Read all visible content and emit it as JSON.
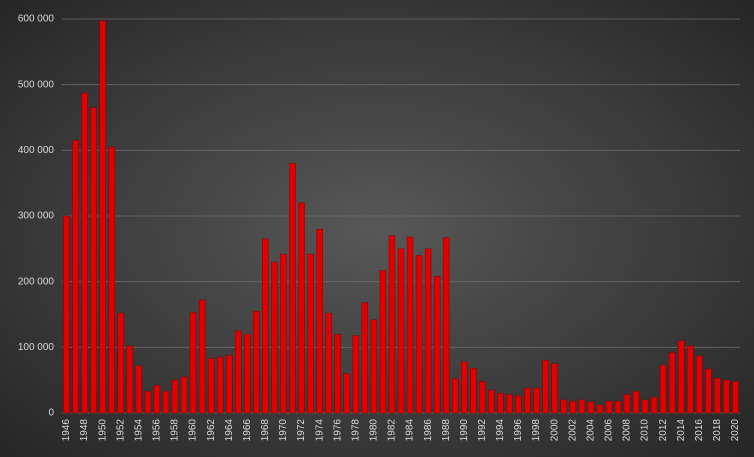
{
  "chart_data": {
    "type": "bar",
    "categories": [
      "1946",
      null,
      "1948",
      null,
      "1950",
      null,
      "1952",
      null,
      "1954",
      null,
      "1956",
      null,
      "1958",
      null,
      "1960",
      null,
      "1962",
      null,
      "1964",
      null,
      "1966",
      null,
      "1968",
      null,
      "1970",
      null,
      "1972",
      null,
      "1974",
      null,
      "1976",
      null,
      "1978",
      null,
      "1980",
      null,
      "1982",
      null,
      "1984",
      null,
      "1986",
      null,
      "1988",
      null,
      "1990",
      null,
      "1992",
      null,
      "1994",
      null,
      "1996",
      null,
      "1998",
      null,
      "2000",
      null,
      "2002",
      null,
      "2004",
      null,
      "2006",
      null,
      "2008",
      null,
      "2010",
      null,
      "2012",
      null,
      "2014",
      null,
      "2016",
      null,
      "2018",
      null,
      "2020"
    ],
    "values": [
      300000,
      415000,
      487000,
      465000,
      597000,
      405000,
      152000,
      102000,
      72000,
      33000,
      42000,
      33000,
      50000,
      55000,
      153000,
      172000,
      83000,
      85000,
      88000,
      125000,
      120000,
      155000,
      265000,
      230000,
      242000,
      380000,
      320000,
      242000,
      280000,
      152000,
      120000,
      60000,
      118000,
      168000,
      142000,
      217000,
      270000,
      250000,
      268000,
      240000,
      250000,
      208000,
      267000,
      52000,
      78000,
      68000,
      48000,
      35000,
      30000,
      28000,
      26000,
      38000,
      38000,
      80000,
      75000,
      20000,
      18000,
      20000,
      17000,
      12000,
      18000,
      18000,
      28000,
      33000,
      20000,
      24000,
      73000,
      92000,
      110000,
      102000,
      87000,
      67000,
      53000,
      50000,
      48000
    ],
    "color": "#e00000",
    "ylim": [
      0,
      600000
    ],
    "yticks": [
      0,
      {
        "value": 100000,
        "label": "100 000"
      },
      {
        "value": 200000,
        "label": "200 000"
      },
      {
        "value": 300000,
        "label": "300 000"
      },
      {
        "value": 400000,
        "label": "400 000"
      },
      {
        "value": 500000,
        "label": "500 000"
      },
      {
        "value": 600000,
        "label": "600 000"
      }
    ],
    "grid": true
  }
}
